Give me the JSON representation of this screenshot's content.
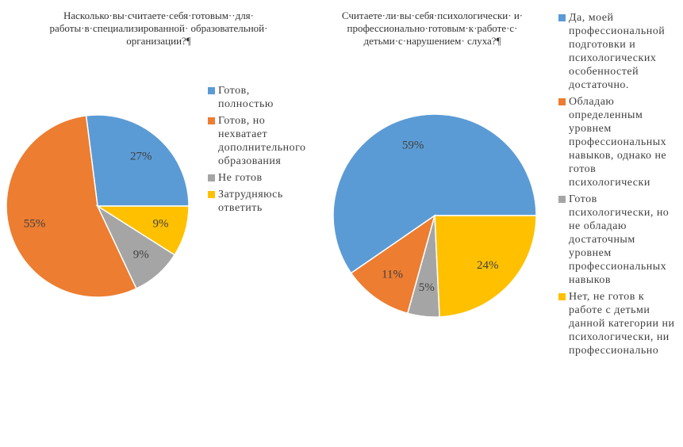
{
  "chart_data": [
    {
      "type": "pie",
      "title": [
        "Насколько·вы·считаете·себя·готовым··для·",
        "работы·в·специализированной· образовательной·",
        "организации?¶"
      ],
      "categories": [
        "Готов, полностью",
        "Готов, но нехватает дополнительного образования",
        "Не готов",
        "Затрудняюсь ответить"
      ],
      "values": [
        27,
        55,
        9,
        9
      ],
      "value_labels": [
        "27%",
        "55%",
        "9%",
        "9%"
      ],
      "colors": [
        "#5b9bd5",
        "#ed7d31",
        "#a5a5a5",
        "#ffc000"
      ]
    },
    {
      "type": "pie",
      "title": [
        "Считаете·ли·вы·себя·психологически· и·",
        "профессионально·готовым·к·работе·с·",
        "детьми·с·нарушением· слуха?¶"
      ],
      "categories": [
        "Да, моей профессиональной подготовки и психологических особенностей достаточно.",
        "Обладаю определенным уровнем профессиональных навыков, однако не готов психологически",
        "Готов психологически, но не обладаю достаточным уровнем профессиональных навыков",
        "Нет, не готов к работе с детьми данной категории ни психологически, ни профессионально"
      ],
      "values": [
        59,
        11,
        5,
        24
      ],
      "value_labels": [
        "59%",
        "11%",
        "5%",
        "24%"
      ],
      "colors": [
        "#5b9bd5",
        "#ed7d31",
        "#a5a5a5",
        "#ffc000"
      ]
    }
  ]
}
